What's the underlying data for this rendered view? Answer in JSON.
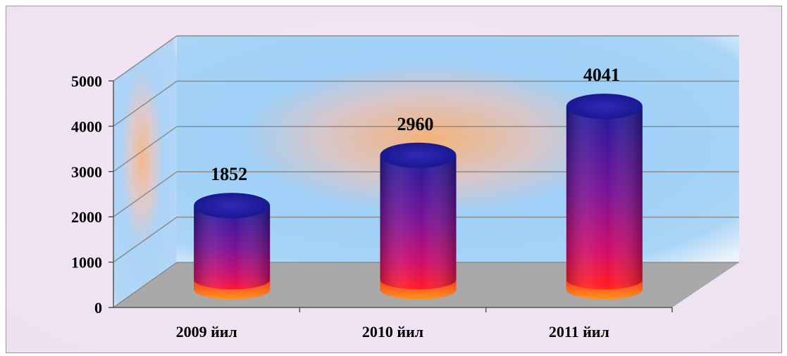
{
  "chart_data": {
    "type": "bar",
    "style": "3d-cylinder",
    "categories": [
      "2009 йил",
      "2010 йил",
      "2011 йил"
    ],
    "values": [
      1852,
      2960,
      4041
    ],
    "data_labels": [
      "1852",
      "2960",
      "4041"
    ],
    "title": "",
    "xlabel": "",
    "ylabel": "",
    "ylim": [
      0,
      5000
    ],
    "yticks": [
      0,
      1000,
      2000,
      3000,
      4000,
      5000
    ],
    "ytick_labels": [
      "0",
      "1000",
      "2000",
      "3000",
      "4000",
      "5000"
    ],
    "grid": true,
    "legend": "none"
  },
  "colors": {
    "bar_top": "#1a1aa0",
    "bar_mid": "#c0107a",
    "bar_bottom": "#ff2020",
    "bar_base": "#ff8c10",
    "floor": "#a9a9a9",
    "wall_blue": "#8ec8f8",
    "wall_glow": "#f2b47a",
    "gridline": "#8c8c8c"
  }
}
